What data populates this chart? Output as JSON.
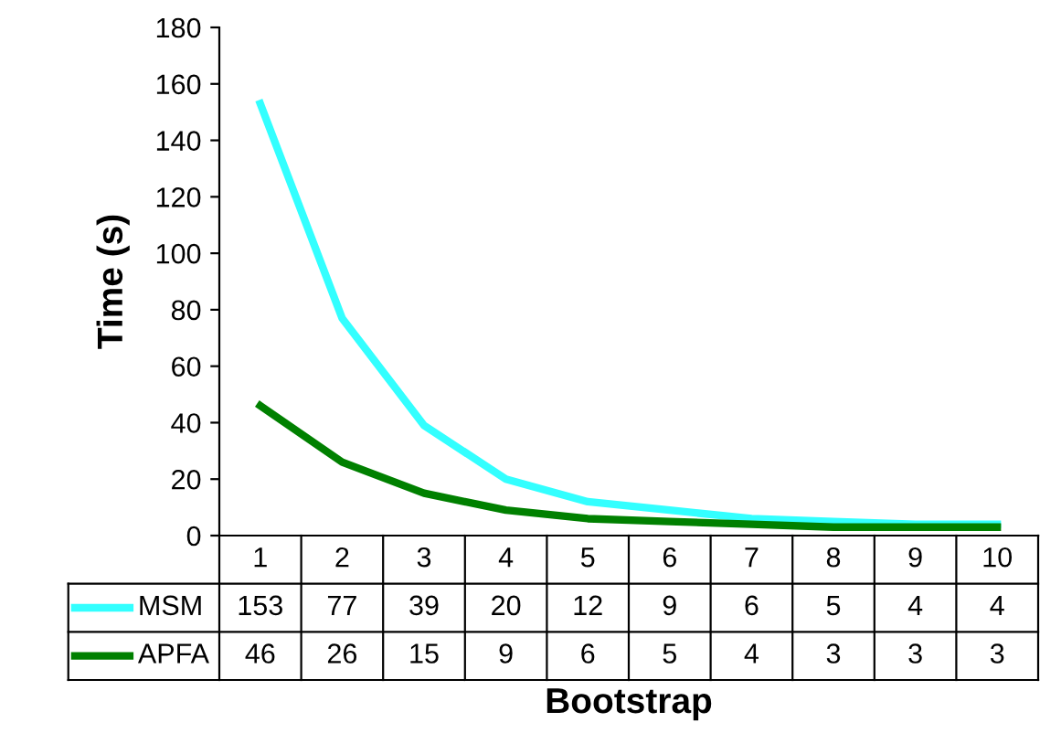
{
  "chart_data": {
    "type": "line",
    "xlabel": "Bootstrap",
    "ylabel": "Time (s)",
    "categories": [
      "1",
      "2",
      "3",
      "4",
      "5",
      "6",
      "7",
      "8",
      "9",
      "10"
    ],
    "series": [
      {
        "name": "MSM",
        "color": "#33ffff",
        "values": [
          153,
          77,
          39,
          20,
          12,
          9,
          6,
          5,
          4,
          4
        ]
      },
      {
        "name": "APFA",
        "color": "#008000",
        "values": [
          46,
          26,
          15,
          9,
          6,
          5,
          4,
          3,
          3,
          3
        ]
      }
    ],
    "ylim": [
      0,
      180
    ],
    "yticks": [
      0,
      20,
      40,
      60,
      80,
      100,
      120,
      140,
      160,
      180
    ],
    "grid": false,
    "data_labels": true,
    "legend": "bottom",
    "marker": "none",
    "line_style": "solid"
  }
}
